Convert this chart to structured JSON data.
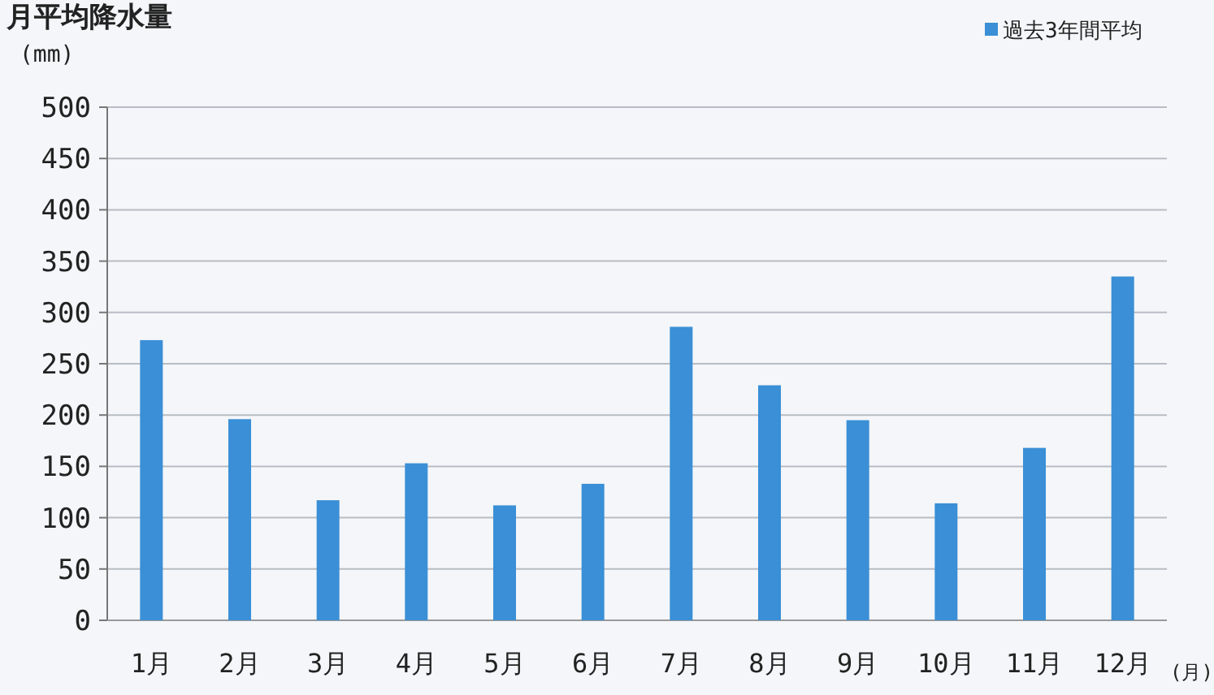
{
  "chart_data": {
    "type": "bar",
    "title": "月平均降水量",
    "ylabel": "(mm)",
    "xlabel": "(月)",
    "categories": [
      "1月",
      "2月",
      "3月",
      "4月",
      "5月",
      "6月",
      "7月",
      "8月",
      "9月",
      "10月",
      "11月",
      "12月"
    ],
    "series": [
      {
        "name": "過去3年間平均",
        "color": "#3a8fd6",
        "values": [
          273,
          196,
          117,
          153,
          112,
          133,
          286,
          229,
          195,
          114,
          168,
          335
        ]
      }
    ],
    "ylim": [
      0,
      500
    ],
    "yticks": [
      0,
      50,
      100,
      150,
      200,
      250,
      300,
      350,
      400,
      450,
      500
    ],
    "grid": "y",
    "legend": "top right"
  }
}
